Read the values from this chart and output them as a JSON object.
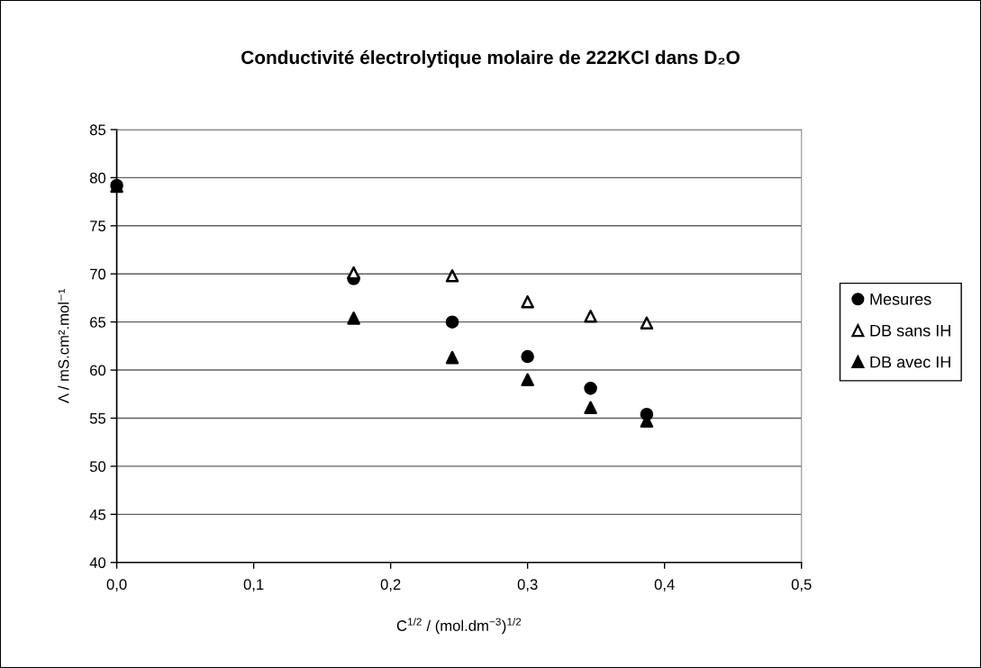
{
  "chart_data": {
    "type": "scatter",
    "title": "Conductivité électrolytique molaire de 222KCl dans D₂O",
    "xlabel": "C$^{1/2}$ / (mol.dm$^{−3}$)$^{1/2}$",
    "ylabel": "Λ / mS.cm².mol⁻¹",
    "x": [
      0,
      0.173,
      0.245,
      0.3,
      0.346,
      0.387
    ],
    "series": [
      {
        "name": "Mesures",
        "color": "#000000",
        "marker": "circle",
        "values": [
          79.2,
          69.5,
          65.0,
          61.4,
          58.1,
          55.4
        ]
      },
      {
        "name": "DB sans IH",
        "color": "#ffffff",
        "marker": "triangle",
        "values": [
          null,
          70.1,
          69.8,
          67.1,
          65.6,
          64.9
        ]
      },
      {
        "name": "DB avec IH",
        "color": "#000000",
        "marker": "triangle",
        "values": [
          79.1,
          65.4,
          61.3,
          59.0,
          56.1,
          54.7
        ]
      }
    ],
    "xlim": [
      0,
      0.5
    ],
    "xticks": [
      {
        "value": 0,
        "label": "0,0"
      },
      {
        "value": 0.1,
        "label": "0,1"
      },
      {
        "value": 0.2,
        "label": "0,2"
      },
      {
        "value": 0.3,
        "label": "0,3"
      },
      {
        "value": 0.4,
        "label": "0,4"
      },
      {
        "value": 0.5,
        "label": "0,5"
      }
    ],
    "ylim": [
      40,
      85
    ],
    "yticks": [
      40,
      45,
      50,
      55,
      60,
      65,
      70,
      75,
      80,
      85
    ],
    "grid": "y",
    "legend": "right"
  }
}
